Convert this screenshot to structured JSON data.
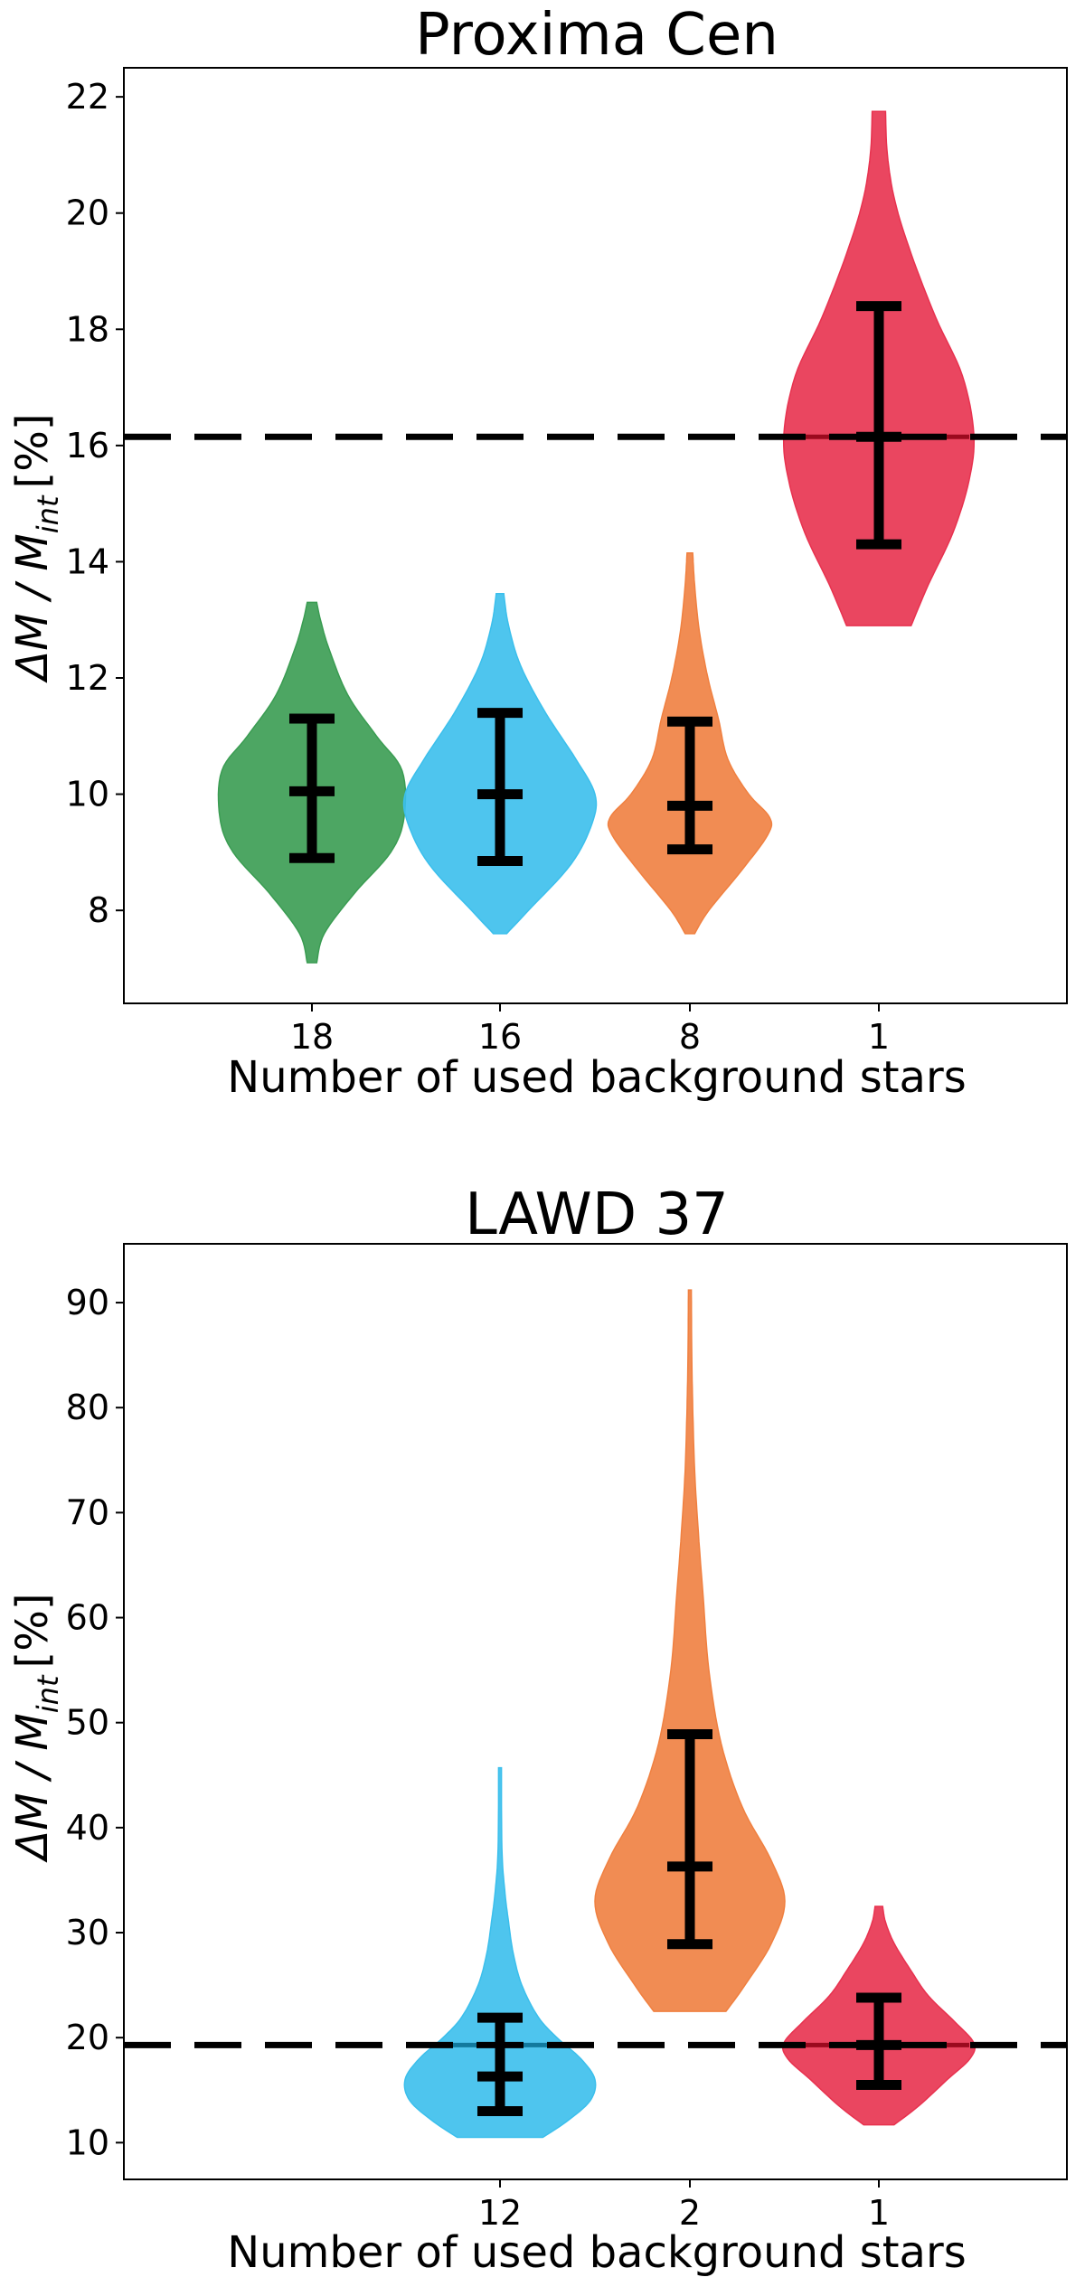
{
  "chart_data": [
    {
      "type": "violin",
      "title": "Proxima Cen",
      "xlabel": "Number of used background stars",
      "ylabel_main": "ΔM / M",
      "ylabel_sub": "int",
      "ylabel_unit": "[%]",
      "ylim": [
        6.4,
        22.5
      ],
      "yticks": [
        8,
        10,
        12,
        14,
        16,
        18,
        20,
        22
      ],
      "reference_line": 16.15,
      "categories": [
        "18",
        "16",
        "8",
        "1"
      ],
      "series": [
        {
          "category": "18",
          "color": "#3a9c52",
          "min": 7.1,
          "max": 13.3,
          "median": 10.05,
          "lower": 8.9,
          "upper": 11.3,
          "profile": [
            [
              7.1,
              0.05
            ],
            [
              7.6,
              0.13
            ],
            [
              8.3,
              0.45
            ],
            [
              9.0,
              0.83
            ],
            [
              9.6,
              0.97
            ],
            [
              10.4,
              0.95
            ],
            [
              11.0,
              0.68
            ],
            [
              11.7,
              0.38
            ],
            [
              12.5,
              0.18
            ],
            [
              13.0,
              0.09
            ],
            [
              13.3,
              0.05
            ]
          ]
        },
        {
          "category": "16",
          "color": "#3bbfec",
          "min": 7.6,
          "max": 13.45,
          "median": 10.0,
          "lower": 8.85,
          "upper": 11.4,
          "profile": [
            [
              7.6,
              0.07
            ],
            [
              8.0,
              0.3
            ],
            [
              8.8,
              0.75
            ],
            [
              9.5,
              0.97
            ],
            [
              10.0,
              1.0
            ],
            [
              10.6,
              0.8
            ],
            [
              11.4,
              0.48
            ],
            [
              12.2,
              0.22
            ],
            [
              12.9,
              0.09
            ],
            [
              13.45,
              0.04
            ]
          ]
        },
        {
          "category": "8",
          "color": "#f08040",
          "min": 7.6,
          "max": 14.15,
          "median": 9.8,
          "lower": 9.05,
          "upper": 11.25,
          "profile": [
            [
              7.6,
              0.05
            ],
            [
              8.0,
              0.2
            ],
            [
              8.7,
              0.55
            ],
            [
              9.3,
              0.82
            ],
            [
              9.6,
              0.84
            ],
            [
              10.0,
              0.62
            ],
            [
              10.6,
              0.4
            ],
            [
              11.3,
              0.3
            ],
            [
              12.0,
              0.19
            ],
            [
              12.8,
              0.1
            ],
            [
              13.6,
              0.05
            ],
            [
              14.15,
              0.03
            ]
          ]
        },
        {
          "category": "1",
          "color": "#e8324f",
          "min": 12.9,
          "max": 21.75,
          "median": 16.15,
          "lower": 14.3,
          "upper": 18.4,
          "profile": [
            [
              12.9,
              0.34
            ],
            [
              13.6,
              0.52
            ],
            [
              14.5,
              0.78
            ],
            [
              15.4,
              0.95
            ],
            [
              16.2,
              1.0
            ],
            [
              17.2,
              0.88
            ],
            [
              18.2,
              0.6
            ],
            [
              19.3,
              0.34
            ],
            [
              20.2,
              0.17
            ],
            [
              21.0,
              0.09
            ],
            [
              21.75,
              0.07
            ]
          ]
        }
      ]
    },
    {
      "type": "violin",
      "title": "LAWD 37",
      "xlabel": "Number of used background stars",
      "ylabel_main": "ΔM / M",
      "ylabel_sub": "int",
      "ylabel_unit": "[%]",
      "ylim": [
        6.5,
        95.6
      ],
      "yticks": [
        10,
        20,
        30,
        40,
        50,
        60,
        70,
        80,
        90
      ],
      "reference_line": 19.3,
      "categories": [
        "",
        "12",
        "2",
        "1"
      ],
      "series": [
        {
          "category": "12",
          "color": "#3bbfec",
          "min": 10.5,
          "max": 45.7,
          "median": 16.3,
          "lower": 13.0,
          "upper": 21.9,
          "bar_at_reference": true,
          "profile": [
            [
              10.5,
              0.45
            ],
            [
              12.0,
              0.7
            ],
            [
              14.0,
              0.95
            ],
            [
              16.0,
              1.0
            ],
            [
              18.0,
              0.85
            ],
            [
              20.0,
              0.6
            ],
            [
              22.0,
              0.4
            ],
            [
              25.0,
              0.23
            ],
            [
              28.0,
              0.14
            ],
            [
              31.0,
              0.09
            ],
            [
              34.0,
              0.05
            ],
            [
              38.0,
              0.02
            ],
            [
              45.7,
              0.015
            ]
          ]
        },
        {
          "category": "2",
          "color": "#f08040",
          "min": 22.5,
          "max": 91.2,
          "median": 36.3,
          "lower": 28.9,
          "upper": 48.9,
          "profile": [
            [
              22.5,
              0.38
            ],
            [
              25.0,
              0.58
            ],
            [
              29.0,
              0.86
            ],
            [
              33.0,
              1.0
            ],
            [
              37.0,
              0.85
            ],
            [
              42.0,
              0.55
            ],
            [
              48.0,
              0.33
            ],
            [
              55.0,
              0.2
            ],
            [
              62.0,
              0.14
            ],
            [
              68.0,
              0.09
            ],
            [
              74.0,
              0.05
            ],
            [
              80.0,
              0.03
            ],
            [
              85.0,
              0.02
            ],
            [
              91.2,
              0.015
            ]
          ]
        },
        {
          "category": "1",
          "color": "#e8324f",
          "min": 11.7,
          "max": 32.5,
          "median": 19.3,
          "lower": 15.5,
          "upper": 23.8,
          "bar_at_reference": true,
          "profile": [
            [
              11.7,
              0.16
            ],
            [
              13.5,
              0.42
            ],
            [
              16.0,
              0.72
            ],
            [
              18.0,
              0.96
            ],
            [
              19.5,
              1.0
            ],
            [
              21.5,
              0.8
            ],
            [
              24.0,
              0.52
            ],
            [
              26.5,
              0.33
            ],
            [
              29.0,
              0.16
            ],
            [
              31.0,
              0.07
            ],
            [
              32.5,
              0.04
            ]
          ]
        }
      ]
    }
  ]
}
